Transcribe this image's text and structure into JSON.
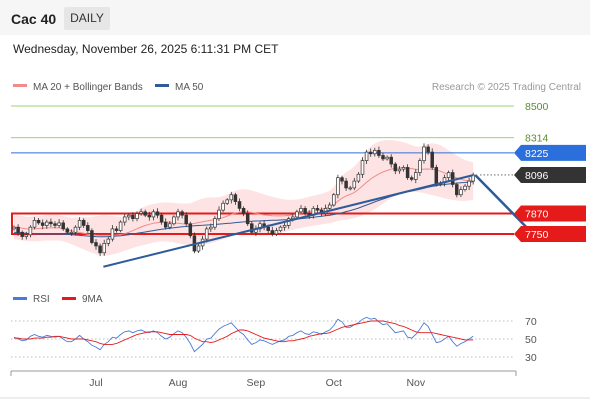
{
  "header": {
    "title": "Cac 40",
    "timeframe": "DAILY",
    "datetime": "Wednesday, November 26, 2025 6:11:31 PM CET"
  },
  "legend": {
    "ma20": "MA 20 + Bollinger Bands",
    "ma50": "MA 50",
    "credit": "Research © 2025 Trading Central",
    "rsi": "RSI",
    "ma9": "9MA"
  },
  "colors": {
    "ma20": "#f08c8c",
    "ma50": "#2e5b99",
    "bollinger_fill": "#fde3e3",
    "support": "#e51b1b",
    "resistance_blue": "#2a6fdb",
    "target_green": "#7cc04b",
    "last_price": "#333333",
    "rsi": "#4a7bd6",
    "rsi_ma": "#e51b1b"
  },
  "chart_data": [
    {
      "type": "candlestick",
      "title": "Cac 40",
      "timeframe": "DAILY",
      "x_tick_labels": [
        "Jul",
        "Aug",
        "Sep",
        "Oct",
        "Nov"
      ],
      "ylim": [
        7630,
        8560
      ],
      "levels": [
        {
          "value": 8500,
          "label": "8500",
          "kind": "target"
        },
        {
          "value": 8314,
          "label": "8314",
          "kind": "target"
        },
        {
          "value": 8225,
          "label": "8225",
          "kind": "resistance"
        },
        {
          "value": 8096,
          "label": "8096",
          "kind": "last"
        },
        {
          "value": 7870,
          "label": "7870",
          "kind": "support"
        },
        {
          "value": 7750,
          "label": "7750",
          "kind": "support"
        }
      ],
      "close": [
        7790,
        7760,
        7735,
        7745,
        7790,
        7830,
        7815,
        7800,
        7820,
        7810,
        7800,
        7815,
        7780,
        7760,
        7760,
        7790,
        7830,
        7800,
        7770,
        7700,
        7680,
        7640,
        7695,
        7720,
        7780,
        7770,
        7820,
        7850,
        7860,
        7840,
        7870,
        7880,
        7860,
        7850,
        7880,
        7860,
        7820,
        7790,
        7810,
        7850,
        7880,
        7860,
        7810,
        7740,
        7650,
        7680,
        7720,
        7780,
        7790,
        7840,
        7890,
        7930,
        7950,
        7980,
        7940,
        7900,
        7870,
        7810,
        7760,
        7780,
        7810,
        7790,
        7770,
        7750,
        7770,
        7790,
        7800,
        7840,
        7850,
        7880,
        7900,
        7870,
        7860,
        7900,
        7890,
        7870,
        7900,
        7920,
        7980,
        8080,
        8060,
        8020,
        8020,
        8060,
        8100,
        8180,
        8230,
        8220,
        8240,
        8210,
        8190,
        8200,
        8160,
        8120,
        8130,
        8140,
        8080,
        8070,
        8110,
        8180,
        8260,
        8230,
        8140,
        8040,
        8050,
        8080,
        8110,
        8040,
        7980,
        8010,
        8030,
        8060,
        8096
      ],
      "bollinger_upper": [
        7860,
        7860,
        7855,
        7850,
        7850,
        7855,
        7855,
        7858,
        7860,
        7862,
        7862,
        7860,
        7855,
        7850,
        7846,
        7846,
        7848,
        7848,
        7848,
        7850,
        7854,
        7858,
        7860,
        7858,
        7856,
        7852,
        7850,
        7852,
        7860,
        7872,
        7886,
        7900,
        7912,
        7920,
        7926,
        7930,
        7934,
        7935,
        7934,
        7932,
        7930,
        7928,
        7928,
        7930,
        7940,
        7950,
        7958,
        7962,
        7964,
        7964,
        7966,
        7972,
        7982,
        7994,
        8004,
        8010,
        8012,
        8010,
        8005,
        7998,
        7990,
        7982,
        7975,
        7968,
        7962,
        7956,
        7952,
        7950,
        7950,
        7952,
        7956,
        7962,
        7968,
        7974,
        7980,
        7986,
        7994,
        8004,
        8026,
        8060,
        8090,
        8112,
        8126,
        8146,
        8172,
        8204,
        8236,
        8262,
        8280,
        8292,
        8298,
        8300,
        8300,
        8298,
        8294,
        8288,
        8280,
        8270,
        8262,
        8262,
        8270,
        8278,
        8282,
        8278,
        8270,
        8256,
        8240,
        8226,
        8210,
        8196,
        8184,
        8176,
        8170
      ],
      "bollinger_lower": [
        7720,
        7716,
        7712,
        7710,
        7708,
        7708,
        7708,
        7710,
        7712,
        7712,
        7712,
        7712,
        7708,
        7700,
        7690,
        7680,
        7670,
        7660,
        7650,
        7640,
        7632,
        7626,
        7624,
        7626,
        7630,
        7636,
        7644,
        7652,
        7660,
        7668,
        7676,
        7682,
        7688,
        7694,
        7700,
        7704,
        7706,
        7706,
        7704,
        7700,
        7696,
        7692,
        7688,
        7686,
        7684,
        7684,
        7686,
        7690,
        7696,
        7704,
        7712,
        7720,
        7728,
        7736,
        7742,
        7746,
        7748,
        7748,
        7746,
        7744,
        7742,
        7742,
        7744,
        7746,
        7750,
        7756,
        7762,
        7768,
        7774,
        7780,
        7786,
        7790,
        7794,
        7798,
        7802,
        7806,
        7810,
        7814,
        7820,
        7826,
        7830,
        7834,
        7838,
        7842,
        7850,
        7860,
        7870,
        7882,
        7896,
        7912,
        7928,
        7944,
        7960,
        7972,
        7982,
        7990,
        7994,
        7996,
        7996,
        7994,
        7990,
        7984,
        7978,
        7972,
        7966,
        7960,
        7954,
        7950,
        7946,
        7944,
        7944,
        7946,
        7950
      ],
      "series": [
        {
          "name": "MA 20",
          "values": [
            7790,
            7788,
            7784,
            7780,
            7779,
            7781,
            7782,
            7784,
            7786,
            7787,
            7787,
            7786,
            7782,
            7775,
            7768,
            7763,
            7759,
            7754,
            7749,
            7745,
            7743,
            7742,
            7742,
            7742,
            7743,
            7744,
            7747,
            7752,
            7760,
            7770,
            7781,
            7791,
            7800,
            7807,
            7813,
            7817,
            7820,
            7820,
            7819,
            7816,
            7813,
            7810,
            7808,
            7808,
            7812,
            7817,
            7822,
            7826,
            7830,
            7834,
            7839,
            7846,
            7855,
            7865,
            7873,
            7878,
            7880,
            7879,
            7876,
            7871,
            7866,
            7862,
            7860,
            7857,
            7856,
            7856,
            7857,
            7859,
            7862,
            7866,
            7871,
            7876,
            7881,
            7886,
            7891,
            7896,
            7902,
            7909,
            7923,
            7943,
            7960,
            7973,
            7982,
            7994,
            8011,
            8032,
            8053,
            8072,
            8088,
            8102,
            8113,
            8122,
            8130,
            8135,
            8138,
            8139,
            8137,
            8133,
            8129,
            8128,
            8130,
            8131,
            8130,
            8125,
            8118,
            8108,
            8097,
            8088,
            8078,
            8070,
            8064,
            8061,
            8060
          ]
        },
        {
          "name": "MA 50",
          "values": [
            7760,
            7758,
            7756,
            7754,
            7752,
            7751,
            7750,
            7750,
            7750,
            7750,
            7750,
            7750,
            7749,
            7748,
            7746,
            7744,
            7742,
            7740,
            7738,
            7736,
            7735,
            7734,
            7734,
            7735,
            7736,
            7738,
            7740,
            7743,
            7746,
            7750,
            7754,
            7758,
            7762,
            7766,
            7770,
            7774,
            7778,
            7781,
            7784,
            7787,
            7790,
            7792,
            7794,
            7796,
            7798,
            7800,
            7801,
            7803,
            7804,
            7806,
            7808,
            7810,
            7812,
            7814,
            7817,
            7819,
            7821,
            7823,
            7825,
            7826,
            7827,
            7828,
            7829,
            7830,
            7831,
            7832,
            7833,
            7834,
            7836,
            7838,
            7840,
            7842,
            7845,
            7848,
            7851,
            7854,
            7857,
            7860,
            7864,
            7869,
            7875,
            7881,
            7887,
            7894,
            7902,
            7911,
            7920,
            7929,
            7938,
            7947,
            7955,
            7963,
            7971,
            7978,
            7985,
            7991,
            7997,
            8002,
            8007,
            8012,
            8018,
            8024,
            8029,
            8033,
            8037,
            8040,
            8043,
            8046,
            8048,
            8050,
            8052,
            8054,
            8056
          ]
        }
      ],
      "trendline": {
        "start": {
          "index": 34,
          "value": 7605
        },
        "end": {
          "index": 112,
          "value": 8095
        }
      },
      "projection": {
        "start": {
          "index": 112,
          "value": 8096
        },
        "end": {
          "index": 127,
          "value": 7752
        }
      }
    },
    {
      "type": "line",
      "title": "RSI",
      "ylim": [
        25,
        78
      ],
      "y_tick_labels": [
        "70",
        "50",
        "30"
      ],
      "y_ticks": [
        70,
        50,
        30
      ],
      "series": [
        {
          "name": "RSI",
          "values": [
            52,
            50,
            48,
            49,
            53,
            55,
            53,
            52,
            54,
            53,
            52,
            53,
            50,
            47,
            47,
            50,
            54,
            50,
            47,
            43,
            41,
            38,
            44,
            47,
            52,
            51,
            55,
            58,
            59,
            57,
            59,
            60,
            58,
            57,
            59,
            57,
            53,
            50,
            52,
            56,
            59,
            57,
            52,
            45,
            36,
            40,
            44,
            50,
            51,
            56,
            61,
            64,
            66,
            68,
            63,
            58,
            55,
            49,
            44,
            46,
            49,
            48,
            46,
            44,
            46,
            48,
            49,
            53,
            54,
            57,
            59,
            56,
            55,
            58,
            57,
            55,
            58,
            60,
            65,
            72,
            69,
            63,
            63,
            66,
            68,
            72,
            74,
            72,
            73,
            69,
            66,
            67,
            62,
            57,
            58,
            59,
            52,
            51,
            55,
            61,
            68,
            64,
            55,
            46,
            47,
            50,
            53,
            47,
            42,
            45,
            47,
            50,
            53
          ]
        },
        {
          "name": "9MA",
          "values": [
            51,
            51,
            50,
            50,
            50,
            51,
            51,
            51,
            52,
            52,
            53,
            53,
            52,
            51,
            50,
            50,
            50,
            50,
            49,
            48,
            47,
            45,
            44,
            44,
            44,
            45,
            47,
            49,
            51,
            53,
            55,
            56,
            57,
            58,
            58,
            58,
            57,
            56,
            55,
            55,
            55,
            55,
            55,
            54,
            51,
            49,
            47,
            47,
            46,
            47,
            49,
            51,
            53,
            56,
            58,
            60,
            60,
            59,
            57,
            55,
            53,
            51,
            50,
            49,
            48,
            47,
            47,
            48,
            48,
            49,
            50,
            51,
            53,
            54,
            55,
            56,
            56,
            57,
            59,
            61,
            63,
            64,
            65,
            66,
            67,
            68,
            69,
            70,
            70,
            70,
            70,
            69,
            68,
            67,
            65,
            64,
            62,
            60,
            58,
            57,
            57,
            57,
            57,
            56,
            55,
            54,
            53,
            52,
            51,
            50,
            49,
            49,
            49
          ]
        }
      ]
    }
  ]
}
